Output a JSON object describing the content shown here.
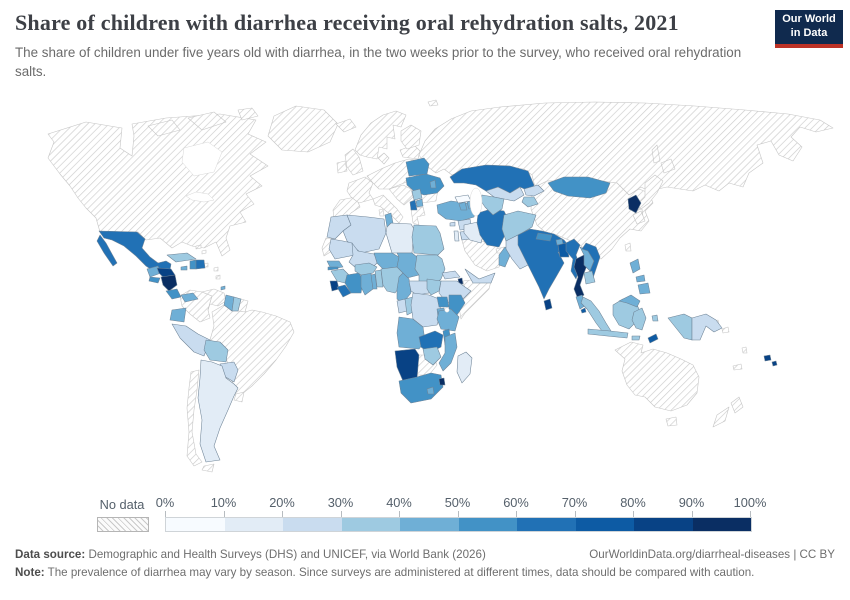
{
  "header": {
    "title": "Share of children with diarrhea receiving oral rehydration salts, 2021",
    "subtitle": "The share of children under five years old with diarrhea, in the two weeks prior to the survey, who received oral rehydration salts.",
    "logo": {
      "line1": "Our World",
      "line2": "in Data",
      "bg": "#102a4e",
      "accent": "#bd3226"
    }
  },
  "legend": {
    "no_data_label": "No data",
    "ticks": [
      "0%",
      "10%",
      "20%",
      "30%",
      "40%",
      "50%",
      "60%",
      "70%",
      "80%",
      "90%",
      "100%"
    ],
    "colors": [
      "#f7fbff",
      "#e2ecf6",
      "#c9dcef",
      "#9ecae1",
      "#6fafd6",
      "#4292c6",
      "#2171b5",
      "#0d5ba4",
      "#084285",
      "#0a2e63"
    ]
  },
  "footer": {
    "source_label": "Data source:",
    "source_text": " Demographic and Health Surveys (DHS) and UNICEF, via World Bank (2026)",
    "link_text": "OurWorldinData.org/diarrheal-diseases | CC BY",
    "note_label": "Note:",
    "note_text": " The prevalence of diarrhea may vary by season. Since surveys are administered at different times, data should be compared with caution."
  },
  "chart_data": {
    "type": "choropleth",
    "title": "Share of children with diarrhea receiving oral rehydration salts",
    "year": 2021,
    "unit": "% of children under five with diarrhea receiving ORS",
    "legend_position": "bottom",
    "bins": [
      {
        "label": "0-10%",
        "color": "#f7fbff"
      },
      {
        "label": "10-20%",
        "color": "#e2ecf6"
      },
      {
        "label": "20-30%",
        "color": "#c9dcef"
      },
      {
        "label": "30-40%",
        "color": "#9ecae1"
      },
      {
        "label": "40-50%",
        "color": "#6fafd6"
      },
      {
        "label": "50-60%",
        "color": "#4292c6"
      },
      {
        "label": "60-70%",
        "color": "#2171b5"
      },
      {
        "label": "70-80%",
        "color": "#0d5ba4"
      },
      {
        "label": "80-90%",
        "color": "#084285"
      },
      {
        "label": "90-100%",
        "color": "#0a2e63"
      },
      {
        "label": "No data",
        "color": "pattern"
      }
    ],
    "countries": {
      "canada-usa": {
        "label": "Canada & United States",
        "range": "No data",
        "color": "pattern"
      },
      "greenland": {
        "label": "Greenland",
        "range": "No data",
        "color": "pattern"
      },
      "iceland": {
        "label": "Iceland",
        "range": "No data",
        "color": "pattern"
      },
      "europe": {
        "label": "Europe (most countries)",
        "range": "No data",
        "color": "pattern"
      },
      "russia": {
        "label": "Russia",
        "range": "No data",
        "color": "pattern"
      },
      "china": {
        "label": "China",
        "range": "No data",
        "color": "pattern"
      },
      "japan": {
        "label": "Japan",
        "range": "No data",
        "color": "pattern"
      },
      "south-korea": {
        "label": "South Korea",
        "range": "No data",
        "color": "pattern"
      },
      "taiwan": {
        "label": "Taiwan",
        "range": "No data",
        "color": "pattern"
      },
      "saudi-arabia": {
        "label": "Saudi Arabia",
        "range": "No data",
        "color": "pattern"
      },
      "uae": {
        "label": "United Arab Emirates",
        "range": "No data",
        "color": "pattern"
      },
      "kuwait": {
        "label": "Kuwait",
        "range": "No data",
        "color": "pattern"
      },
      "somalia": {
        "label": "Somalia",
        "range": "No data",
        "color": "pattern"
      },
      "botswana": {
        "label": "Botswana",
        "range": "No data",
        "color": "pattern"
      },
      "western-sahara": {
        "label": "Western Sahara",
        "range": "No data",
        "color": "pattern"
      },
      "colombia": {
        "label": "Colombia",
        "range": "No data",
        "color": "pattern"
      },
      "venezuela": {
        "label": "Venezuela",
        "range": "No data",
        "color": "pattern"
      },
      "french-guiana": {
        "label": "French Guiana",
        "range": "No data",
        "color": "pattern"
      },
      "brazil": {
        "label": "Brazil",
        "range": "No data",
        "color": "pattern"
      },
      "chile": {
        "label": "Chile",
        "range": "No data",
        "color": "pattern"
      },
      "uruguay": {
        "label": "Uruguay",
        "range": "No data",
        "color": "pattern"
      },
      "australia": {
        "label": "Australia",
        "range": "No data",
        "color": "pattern"
      },
      "new-zealand": {
        "label": "New Zealand",
        "range": "No data",
        "color": "pattern"
      },
      "solomon-islands": {
        "label": "Solomon Islands",
        "range": "No data",
        "color": "pattern"
      },
      "vanuatu": {
        "label": "Vanuatu",
        "range": "No data",
        "color": "pattern"
      },
      "new-caledonia": {
        "label": "New Caledonia",
        "range": "No data",
        "color": "pattern"
      },
      "puerto-rico": {
        "label": "Puerto Rico",
        "range": "No data",
        "color": "pattern"
      },
      "lesser-antilles": {
        "label": "Lesser Antilles",
        "range": "No data",
        "color": "pattern"
      },
      "bahamas": {
        "label": "Bahamas",
        "range": "No data",
        "color": "pattern"
      },
      "mexico": {
        "label": "Mexico",
        "range": "60-70%",
        "color": "#2171b5"
      },
      "guatemala": {
        "label": "Guatemala",
        "range": "40-50%",
        "color": "#6fafd6"
      },
      "honduras": {
        "label": "Honduras",
        "range": "80-90%",
        "color": "#084285"
      },
      "el-salvador": {
        "label": "El Salvador",
        "range": "50-60%",
        "color": "#4292c6"
      },
      "nicaragua": {
        "label": "Nicaragua",
        "range": "90-100%",
        "color": "#0a2e63"
      },
      "costa-rica": {
        "label": "Costa Rica",
        "range": "50-60%",
        "color": "#4292c6"
      },
      "panama": {
        "label": "Panama",
        "range": "40-50%",
        "color": "#6fafd6"
      },
      "cuba": {
        "label": "Cuba",
        "range": "30-40%",
        "color": "#9ecae1"
      },
      "jamaica": {
        "label": "Jamaica",
        "range": "40-50%",
        "color": "#6fafd6"
      },
      "haiti": {
        "label": "Haiti",
        "range": "50-60%",
        "color": "#4292c6"
      },
      "dominican-republic": {
        "label": "Dominican Republic",
        "range": "60-70%",
        "color": "#2171b5"
      },
      "trinidad-tobago": {
        "label": "Trinidad and Tobago",
        "range": "40-50%",
        "color": "#6fafd6"
      },
      "ecuador": {
        "label": "Ecuador",
        "range": "40-50%",
        "color": "#6fafd6"
      },
      "peru": {
        "label": "Peru",
        "range": "20-30%",
        "color": "#c9dcef"
      },
      "bolivia": {
        "label": "Bolivia",
        "range": "30-40%",
        "color": "#9ecae1"
      },
      "paraguay": {
        "label": "Paraguay",
        "range": "20-30%",
        "color": "#c9dcef"
      },
      "argentina": {
        "label": "Argentina",
        "range": "10-20%",
        "color": "#e2ecf6"
      },
      "guyana": {
        "label": "Guyana",
        "range": "40-50%",
        "color": "#6fafd6"
      },
      "suriname": {
        "label": "Suriname",
        "range": "30-40%",
        "color": "#9ecae1"
      },
      "belarus": {
        "label": "Belarus",
        "range": "50-60%",
        "color": "#4292c6"
      },
      "ukraine": {
        "label": "Ukraine",
        "range": "50-60%",
        "color": "#4292c6"
      },
      "moldova": {
        "label": "Moldova",
        "range": "40-50%",
        "color": "#6fafd6"
      },
      "serbia": {
        "label": "Serbia",
        "range": "30-40%",
        "color": "#9ecae1"
      },
      "albania": {
        "label": "Albania",
        "range": "60-70%",
        "color": "#2171b5"
      },
      "north-macedonia": {
        "label": "North Macedonia",
        "range": "40-50%",
        "color": "#6fafd6"
      },
      "turkey": {
        "label": "Turkey",
        "range": "40-50%",
        "color": "#6fafd6"
      },
      "georgia": {
        "label": "Georgia",
        "range": "0-10%",
        "color": "#f7fbff"
      },
      "armenia": {
        "label": "Armenia",
        "range": "40-50%",
        "color": "#6fafd6"
      },
      "azerbaijan": {
        "label": "Azerbaijan",
        "range": "40-50%",
        "color": "#6fafd6"
      },
      "syria": {
        "label": "Syria",
        "range": "20-30%",
        "color": "#c9dcef"
      },
      "cyprus": {
        "label": "Cyprus",
        "range": "20-30%",
        "color": "#c9dcef"
      },
      "israel": {
        "label": "Israel",
        "range": "10-20%",
        "color": "#e2ecf6"
      },
      "jordan": {
        "label": "Jordan",
        "range": "20-30%",
        "color": "#c9dcef"
      },
      "iraq": {
        "label": "Iraq",
        "range": "10-20%",
        "color": "#e2ecf6"
      },
      "iran": {
        "label": "Iran",
        "range": "60-70%",
        "color": "#2171b5"
      },
      "yemen": {
        "label": "Yemen",
        "range": "20-30%",
        "color": "#c9dcef"
      },
      "oman": {
        "label": "Oman",
        "range": "40-50%",
        "color": "#6fafd6"
      },
      "kazakhstan": {
        "label": "Kazakhstan",
        "range": "60-70%",
        "color": "#2171b5"
      },
      "uzbekistan": {
        "label": "Uzbekistan",
        "range": "20-30%",
        "color": "#c9dcef"
      },
      "turkmenistan": {
        "label": "Turkmenistan",
        "range": "30-40%",
        "color": "#9ecae1"
      },
      "kyrgyzstan": {
        "label": "Kyrgyzstan",
        "range": "20-30%",
        "color": "#c9dcef"
      },
      "tajikistan": {
        "label": "Tajikistan",
        "range": "30-40%",
        "color": "#9ecae1"
      },
      "afghanistan": {
        "label": "Afghanistan",
        "range": "30-40%",
        "color": "#9ecae1"
      },
      "pakistan": {
        "label": "Pakistan",
        "range": "20-30%",
        "color": "#c9dcef"
      },
      "india": {
        "label": "India",
        "range": "60-70%",
        "color": "#2171b5"
      },
      "nepal": {
        "label": "Nepal",
        "range": "50-60%",
        "color": "#4292c6"
      },
      "bhutan": {
        "label": "Bhutan",
        "range": "40-50%",
        "color": "#6fafd6"
      },
      "bangladesh": {
        "label": "Bangladesh",
        "range": "70-80%",
        "color": "#0d5ba4"
      },
      "sri-lanka": {
        "label": "Sri Lanka",
        "range": "80-90%",
        "color": "#084285"
      },
      "myanmar": {
        "label": "Myanmar",
        "range": "60-70%",
        "color": "#2171b5"
      },
      "thailand": {
        "label": "Thailand",
        "range": "90-100%",
        "color": "#0a2e63"
      },
      "laos": {
        "label": "Laos",
        "range": "40-50%",
        "color": "#6fafd6"
      },
      "vietnam": {
        "label": "Vietnam",
        "range": "60-70%",
        "color": "#2171b5"
      },
      "cambodia": {
        "label": "Cambodia",
        "range": "30-40%",
        "color": "#9ecae1"
      },
      "malaysia": {
        "label": "Malaysia",
        "range": "40-50%",
        "color": "#6fafd6"
      },
      "singapore": {
        "label": "Singapore",
        "range": "70-80%",
        "color": "#0d5ba4"
      },
      "indonesia": {
        "label": "Indonesia",
        "range": "30-40%",
        "color": "#9ecae1"
      },
      "mongolia": {
        "label": "Mongolia",
        "range": "50-60%",
        "color": "#4292c6"
      },
      "north-korea": {
        "label": "North Korea",
        "range": "90-100%",
        "color": "#0a2e63"
      },
      "philippines": {
        "label": "Philippines",
        "range": "40-50%",
        "color": "#6fafd6"
      },
      "papua-new-guinea": {
        "label": "Papua New Guinea",
        "range": "20-30%",
        "color": "#c9dcef"
      },
      "timor-leste": {
        "label": "Timor-Leste",
        "range": "70-80%",
        "color": "#0d5ba4"
      },
      "fiji": {
        "label": "Fiji",
        "range": "80-90%",
        "color": "#084285"
      },
      "morocco": {
        "label": "Morocco",
        "range": "20-30%",
        "color": "#c9dcef"
      },
      "algeria": {
        "label": "Algeria",
        "range": "20-30%",
        "color": "#c9dcef"
      },
      "tunisia": {
        "label": "Tunisia",
        "range": "40-50%",
        "color": "#6fafd6"
      },
      "libya": {
        "label": "Libya",
        "range": "10-20%",
        "color": "#e2ecf6"
      },
      "egypt": {
        "label": "Egypt",
        "range": "30-40%",
        "color": "#9ecae1"
      },
      "mauritania": {
        "label": "Mauritania",
        "range": "20-30%",
        "color": "#c9dcef"
      },
      "mali": {
        "label": "Mali",
        "range": "20-30%",
        "color": "#c9dcef"
      },
      "niger": {
        "label": "Niger",
        "range": "40-50%",
        "color": "#6fafd6"
      },
      "chad": {
        "label": "Chad",
        "range": "40-50%",
        "color": "#6fafd6"
      },
      "sudan": {
        "label": "Sudan",
        "range": "30-40%",
        "color": "#9ecae1"
      },
      "eritrea": {
        "label": "Eritrea",
        "range": "20-30%",
        "color": "#c9dcef"
      },
      "djibouti": {
        "label": "Djibouti",
        "range": "90-100%",
        "color": "#0a2e63"
      },
      "ethiopia": {
        "label": "Ethiopia",
        "range": "20-30%",
        "color": "#c9dcef"
      },
      "senegal": {
        "label": "Senegal",
        "range": "40-50%",
        "color": "#6fafd6"
      },
      "gambia": {
        "label": "Gambia",
        "range": "50-60%",
        "color": "#4292c6"
      },
      "guinea": {
        "label": "Guinea",
        "range": "30-40%",
        "color": "#9ecae1"
      },
      "sierra-leone": {
        "label": "Sierra Leone",
        "range": "80-90%",
        "color": "#084285"
      },
      "liberia": {
        "label": "Liberia",
        "range": "60-70%",
        "color": "#2171b5"
      },
      "cote-divoire": {
        "label": "Cote d'Ivoire",
        "range": "50-60%",
        "color": "#4292c6"
      },
      "ghana": {
        "label": "Ghana",
        "range": "40-50%",
        "color": "#6fafd6"
      },
      "togo": {
        "label": "Togo",
        "range": "40-50%",
        "color": "#6fafd6"
      },
      "benin": {
        "label": "Benin",
        "range": "30-40%",
        "color": "#9ecae1"
      },
      "burkina-faso": {
        "label": "Burkina Faso",
        "range": "30-40%",
        "color": "#9ecae1"
      },
      "nigeria": {
        "label": "Nigeria",
        "range": "30-40%",
        "color": "#9ecae1"
      },
      "cameroon": {
        "label": "Cameroon",
        "range": "40-50%",
        "color": "#6fafd6"
      },
      "central-african-republic": {
        "label": "Central African Republic",
        "range": "20-30%",
        "color": "#c9dcef"
      },
      "south-sudan": {
        "label": "South Sudan",
        "range": "30-40%",
        "color": "#9ecae1"
      },
      "gabon": {
        "label": "Gabon",
        "range": "20-30%",
        "color": "#c9dcef"
      },
      "congo": {
        "label": "Congo",
        "range": "30-40%",
        "color": "#9ecae1"
      },
      "drc": {
        "label": "Democratic Republic of Congo",
        "range": "20-30%",
        "color": "#c9dcef"
      },
      "uganda": {
        "label": "Uganda",
        "range": "50-60%",
        "color": "#4292c6"
      },
      "kenya": {
        "label": "Kenya",
        "range": "50-60%",
        "color": "#4292c6"
      },
      "rwanda-burundi": {
        "label": "Rwanda & Burundi",
        "range": "40-50%",
        "color": "#6fafd6"
      },
      "tanzania": {
        "label": "Tanzania",
        "range": "40-50%",
        "color": "#6fafd6"
      },
      "angola": {
        "label": "Angola",
        "range": "40-50%",
        "color": "#6fafd6"
      },
      "zambia": {
        "label": "Zambia",
        "range": "60-70%",
        "color": "#2171b5"
      },
      "malawi": {
        "label": "Malawi",
        "range": "50-60%",
        "color": "#4292c6"
      },
      "mozambique": {
        "label": "Mozambique",
        "range": "40-50%",
        "color": "#6fafd6"
      },
      "zimbabwe": {
        "label": "Zimbabwe",
        "range": "30-40%",
        "color": "#9ecae1"
      },
      "namibia": {
        "label": "Namibia",
        "range": "80-90%",
        "color": "#084285"
      },
      "south-africa": {
        "label": "South Africa",
        "range": "50-60%",
        "color": "#4292c6"
      },
      "lesotho": {
        "label": "Lesotho",
        "range": "40-50%",
        "color": "#6fafd6"
      },
      "eswatini": {
        "label": "Eswatini",
        "range": "90-100%",
        "color": "#0a2e63"
      },
      "madagascar": {
        "label": "Madagascar",
        "range": "10-20%",
        "color": "#e2ecf6"
      }
    }
  }
}
